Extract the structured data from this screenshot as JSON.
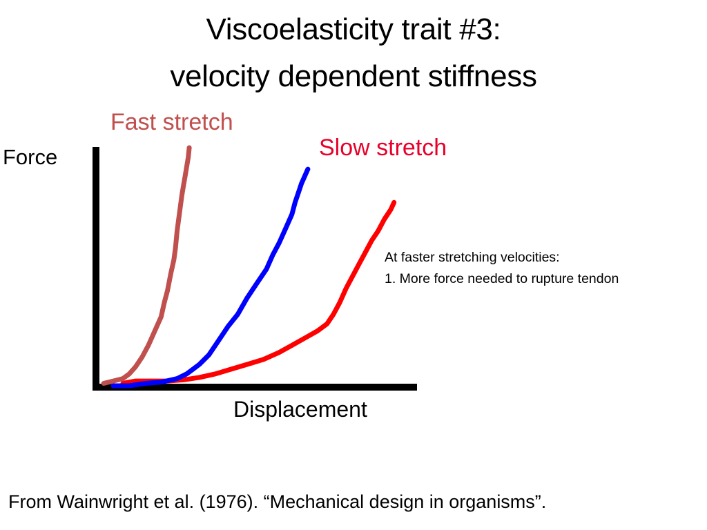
{
  "title": {
    "line1": "Viscoelasticity trait #3:",
    "line2": "velocity dependent stiffness"
  },
  "note": {
    "line1": "At faster stretching velocities:",
    "line2": "1.  More force needed to rupture tendon"
  },
  "citation": "From Wainwright et al. (1976). “Mechanical design in organisms”.",
  "colors": {
    "axis": "#000000",
    "fast": "#c0504d",
    "medium": "#0000ff",
    "slow": "#ff0000",
    "fast_label": "#c0504d",
    "slow_label": "#e8002a"
  },
  "chart_data": {
    "type": "line",
    "title": "",
    "xlabel": "Displacement",
    "ylabel": "Force",
    "grid": false,
    "axis_ticks": false,
    "xlim": [
      0,
      100
    ],
    "ylim": [
      0,
      100
    ],
    "series": [
      {
        "name": "Fast stretch",
        "color": "#c0504d",
        "points": [
          [
            2,
            1
          ],
          [
            5,
            2
          ],
          [
            8,
            3
          ],
          [
            10,
            5
          ],
          [
            12,
            8
          ],
          [
            14,
            12
          ],
          [
            16,
            17
          ],
          [
            18,
            23
          ],
          [
            20,
            29
          ],
          [
            21,
            35
          ],
          [
            22,
            40
          ],
          [
            23,
            47
          ],
          [
            24,
            53
          ],
          [
            24.5,
            58
          ],
          [
            25,
            65
          ],
          [
            25.5,
            70
          ],
          [
            26,
            75
          ],
          [
            26.5,
            80
          ],
          [
            27,
            84
          ],
          [
            27.5,
            88
          ],
          [
            28,
            92
          ],
          [
            28.5,
            96
          ],
          [
            28.8,
            100
          ]
        ]
      },
      {
        "series_key": "unlabeled-middle",
        "color": "#0000ff",
        "points": [
          [
            5,
            0
          ],
          [
            10,
            0
          ],
          [
            15,
            1
          ],
          [
            20,
            1.5
          ],
          [
            25,
            3
          ],
          [
            28,
            5
          ],
          [
            30,
            7
          ],
          [
            32,
            9
          ],
          [
            35,
            13
          ],
          [
            38,
            19
          ],
          [
            41,
            25
          ],
          [
            44,
            30
          ],
          [
            47,
            37
          ],
          [
            50,
            43
          ],
          [
            53,
            49
          ],
          [
            55,
            55
          ],
          [
            57,
            60
          ],
          [
            59,
            66
          ],
          [
            61,
            72
          ],
          [
            62,
            77
          ],
          [
            63,
            81
          ],
          [
            64,
            85
          ],
          [
            65,
            88
          ],
          [
            66,
            91
          ]
        ]
      },
      {
        "name": "Slow stretch",
        "color": "#ff0000",
        "points": [
          [
            8,
            1
          ],
          [
            12,
            2
          ],
          [
            17,
            2
          ],
          [
            22,
            2
          ],
          [
            27,
            2.5
          ],
          [
            32,
            3.5
          ],
          [
            37,
            5
          ],
          [
            42,
            7
          ],
          [
            47,
            9
          ],
          [
            52,
            11
          ],
          [
            57,
            14
          ],
          [
            61,
            17
          ],
          [
            65,
            20
          ],
          [
            69,
            23
          ],
          [
            72,
            26
          ],
          [
            74,
            30
          ],
          [
            76,
            35
          ],
          [
            78,
            41
          ],
          [
            80,
            46
          ],
          [
            82,
            51
          ],
          [
            84,
            56
          ],
          [
            86,
            61
          ],
          [
            88,
            65
          ],
          [
            90,
            70
          ],
          [
            92,
            74
          ],
          [
            93,
            77
          ]
        ]
      }
    ],
    "labels": {
      "fast": "Fast stretch",
      "slow": "Slow stretch"
    }
  }
}
